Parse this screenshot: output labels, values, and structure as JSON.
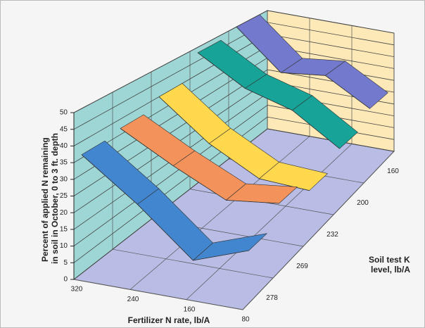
{
  "chart_data": {
    "type": "ribbon3d",
    "y_label": [
      "Percent of applied N remaining",
      "in soil in October, 0 to 3 ft. depth"
    ],
    "x_label": "Fertilizer N rate, lb/A",
    "z_label": [
      "Soil test K",
      "level, lb/A"
    ],
    "categories": [
      "320",
      "240",
      "160",
      "80"
    ],
    "z_categories": [
      "160",
      "200",
      "232",
      "269",
      "278"
    ],
    "series": [
      {
        "color": "#7379cc",
        "values": [
          50,
          35,
          37,
          27
        ]
      },
      {
        "color": "#17a398",
        "values": [
          48,
          38,
          33,
          22
        ]
      },
      {
        "color": "#ffd84d",
        "values": [
          40,
          27,
          18,
          17
        ]
      },
      {
        "color": "#f4925b",
        "values": [
          37,
          28,
          20,
          22
        ]
      },
      {
        "color": "#4286d0",
        "values": [
          36,
          24,
          10,
          16
        ]
      }
    ],
    "ylim": [
      0,
      50
    ],
    "yticks": [
      0,
      5,
      10,
      15,
      20,
      25,
      30,
      35,
      40,
      45,
      50
    ],
    "grid": true
  }
}
